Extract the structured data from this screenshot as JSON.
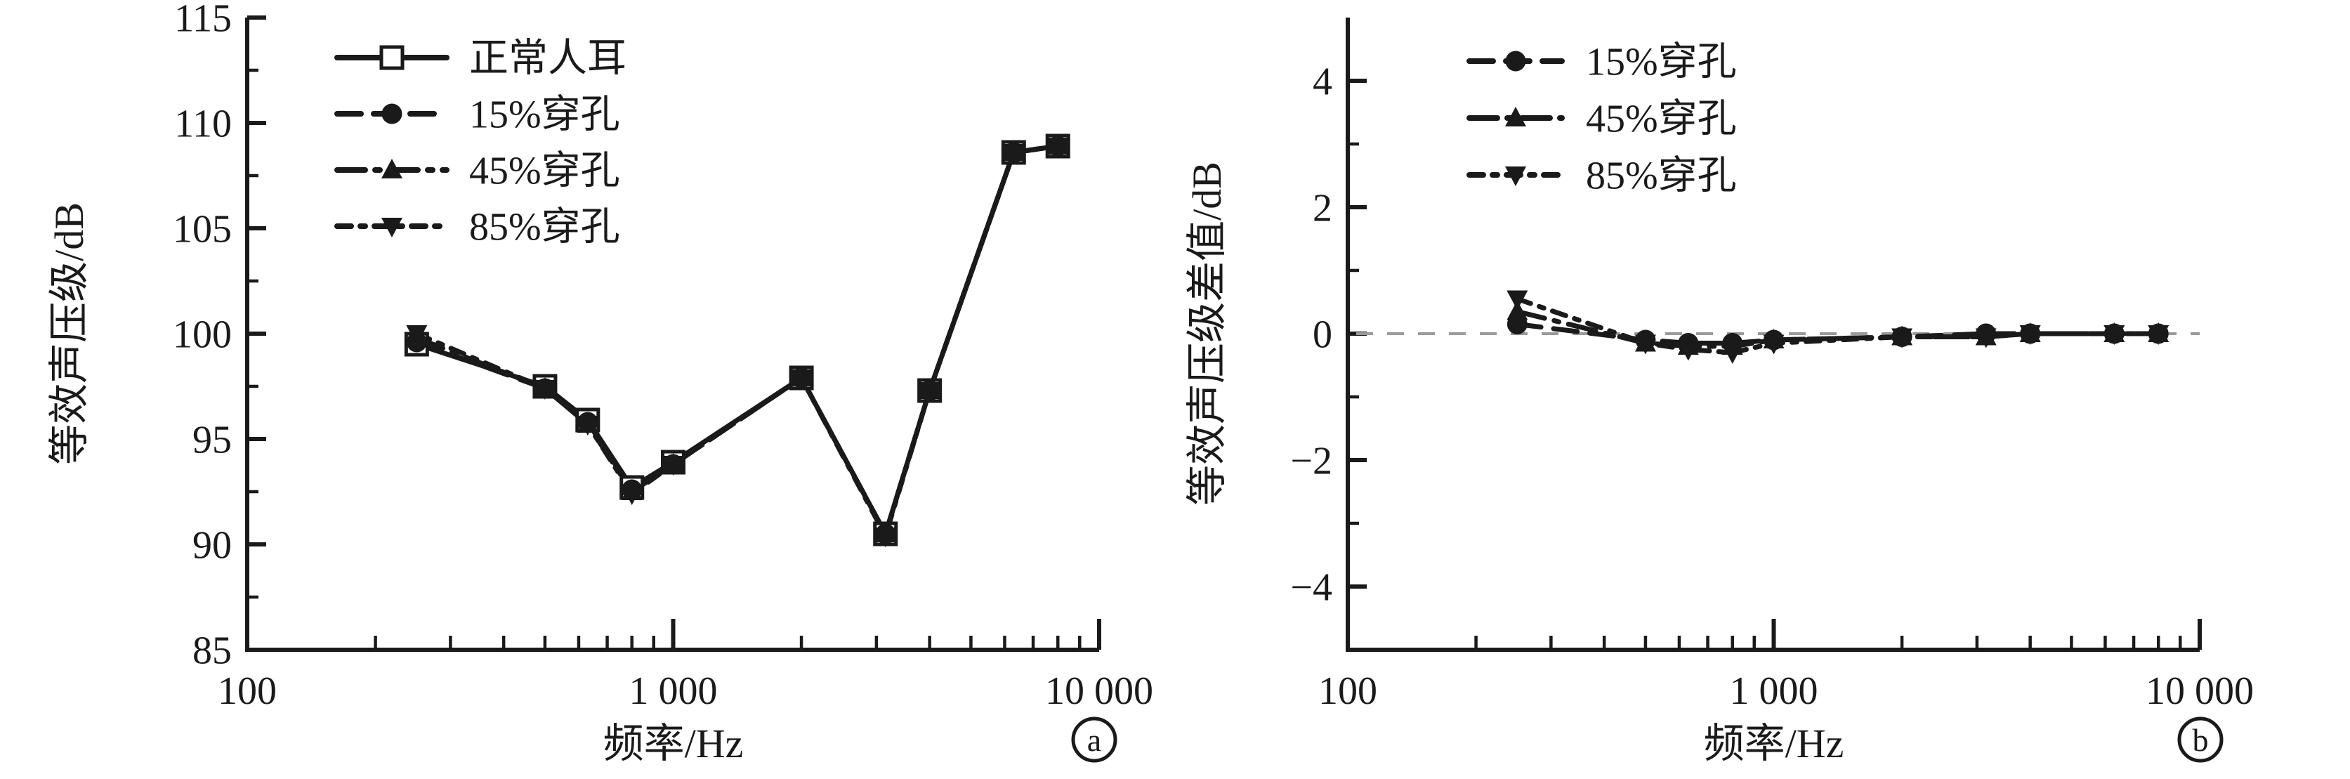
{
  "figure": {
    "background": "#ffffff",
    "line_color": "#1a1a1a",
    "zero_line_color": "#9a9a9a",
    "text_color": "#1a1a1a"
  },
  "chart_data": [
    {
      "type": "line",
      "panel_label": "a",
      "xlabel": "频率/Hz",
      "ylabel": "等效声压级/dB",
      "x_scale": "log",
      "xlim": [
        100,
        10000
      ],
      "x_major_ticks": [
        1000,
        10000
      ],
      "x_label_ticks": [
        100,
        1000,
        10000
      ],
      "x_tick_labels": [
        "100",
        "1 000",
        "10 000"
      ],
      "ylim": [
        85,
        115
      ],
      "y_major_ticks": [
        85,
        90,
        95,
        100,
        105,
        110,
        115
      ],
      "y_tick_labels": [
        "85",
        "90",
        "95",
        "100",
        "105",
        "110",
        "115"
      ],
      "y_minor_ticks": [
        87.5,
        92.5,
        97.5,
        102.5,
        107.5,
        112.5
      ],
      "grid": false,
      "legend_position": "upper-left",
      "zero_line": false,
      "x": [
        250,
        500,
        630,
        800,
        1000,
        2000,
        3150,
        4000,
        6300,
        8000
      ],
      "series": [
        {
          "name": "正常人耳",
          "marker": "square-open",
          "dash": "solid",
          "values": [
            99.5,
            97.5,
            95.9,
            92.7,
            93.9,
            97.9,
            90.5,
            97.3,
            108.6,
            108.9
          ]
        },
        {
          "name": "15%穿孔",
          "marker": "circle",
          "dash": "dash",
          "values": [
            99.6,
            97.4,
            95.8,
            92.6,
            93.8,
            97.9,
            90.5,
            97.3,
            108.6,
            108.9
          ]
        },
        {
          "name": "45%穿孔",
          "marker": "triangle-up",
          "dash": "dash-dot",
          "values": [
            99.8,
            97.4,
            95.7,
            92.5,
            93.8,
            97.9,
            90.5,
            97.3,
            108.6,
            108.9
          ]
        },
        {
          "name": "85%穿孔",
          "marker": "triangle-down",
          "dash": "dash-dot-dot",
          "values": [
            100.0,
            97.4,
            95.7,
            92.4,
            93.8,
            97.9,
            90.4,
            97.3,
            108.6,
            108.9
          ]
        }
      ]
    },
    {
      "type": "line",
      "panel_label": "b",
      "xlabel": "频率/Hz",
      "ylabel": "等效声压级差值/dB",
      "x_scale": "log",
      "xlim": [
        100,
        10000
      ],
      "x_major_ticks": [
        1000,
        10000
      ],
      "x_label_ticks": [
        100,
        1000,
        10000
      ],
      "x_tick_labels": [
        "100",
        "1 000",
        "10 000"
      ],
      "ylim": [
        -5,
        5
      ],
      "y_major_ticks": [
        -4,
        -2,
        0,
        2,
        4
      ],
      "y_tick_labels": [
        "−4",
        "−2",
        "0",
        "2",
        "4"
      ],
      "y_minor_ticks": [
        -3,
        -1,
        1,
        3
      ],
      "grid": false,
      "legend_position": "upper-left",
      "zero_line": true,
      "x": [
        250,
        500,
        630,
        800,
        1000,
        2000,
        3150,
        4000,
        6300,
        8000
      ],
      "series": [
        {
          "name": "15%穿孔",
          "marker": "circle",
          "dash": "dash",
          "values": [
            0.15,
            -0.1,
            -0.15,
            -0.15,
            -0.1,
            -0.05,
            0.0,
            0.0,
            0.0,
            0.0
          ]
        },
        {
          "name": "45%穿孔",
          "marker": "triangle-up",
          "dash": "dash-dot",
          "values": [
            0.35,
            -0.15,
            -0.2,
            -0.2,
            -0.1,
            -0.05,
            -0.05,
            0.0,
            0.0,
            0.0
          ]
        },
        {
          "name": "85%穿孔",
          "marker": "triangle-down",
          "dash": "dash-dot-dot",
          "values": [
            0.55,
            -0.15,
            -0.25,
            -0.3,
            -0.15,
            -0.05,
            -0.05,
            0.0,
            0.0,
            0.0
          ]
        }
      ]
    }
  ]
}
